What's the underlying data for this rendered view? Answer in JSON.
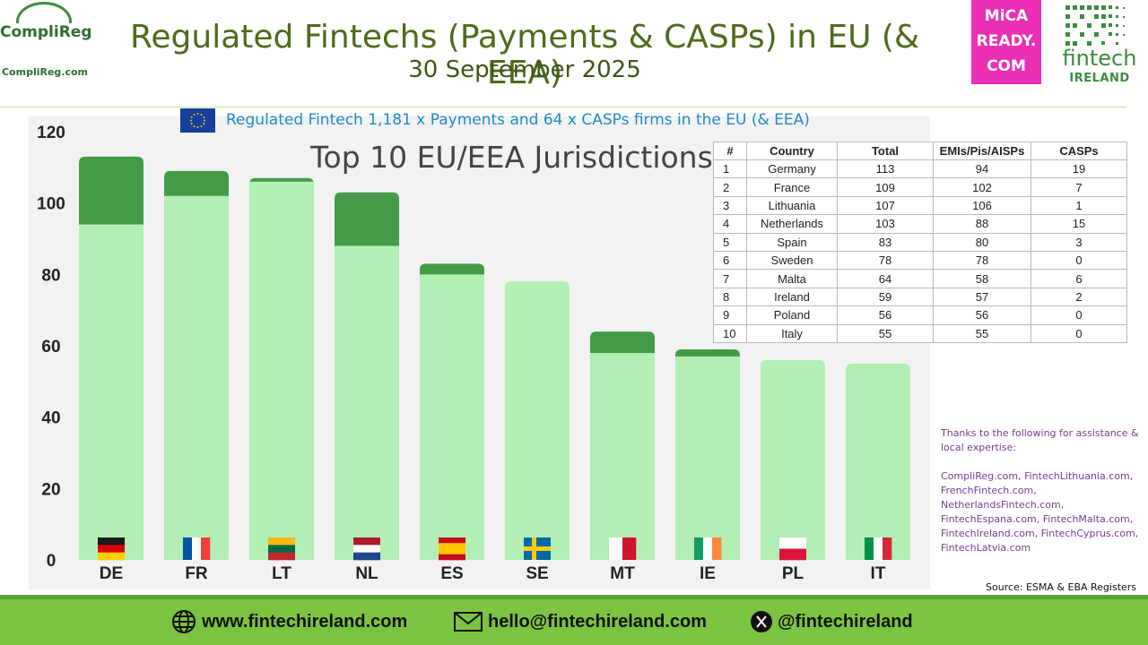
{
  "header": {
    "logo_name": "CompliReg",
    "logo_url": "CompliReg.com",
    "title": "Regulated Fintechs (Payments & CASPs) in EU (& EEA)",
    "subtitle": "30 September 2025",
    "mica_lines": [
      "MiCA",
      "READY.",
      "COM"
    ],
    "fi_word": "fintech",
    "fi_sub": "IRELAND"
  },
  "colors": {
    "light_bar": "#b3eeb4",
    "dark_bar": "#449a47",
    "title_green": "#4e6b1a",
    "note_blue": "#1d8bc6",
    "footer_green": "#7cc342",
    "mica_pink": "#ea2fb4"
  },
  "chart_note": "Regulated Fintech 1,181 x Payments and 64 x CASPs firms in the EU (& EEA)",
  "chart_data": {
    "type": "bar",
    "stacked": true,
    "title": "Top 10 EU/EEA Jurisdictions",
    "categories": [
      "DE",
      "FR",
      "LT",
      "NL",
      "ES",
      "SE",
      "MT",
      "IE",
      "PL",
      "IT"
    ],
    "series": [
      {
        "values": [
          94,
          102,
          106,
          88,
          80,
          78,
          58,
          57,
          56,
          55
        ],
        "color": "#b3eeb4"
      },
      {
        "values": [
          19,
          7,
          1,
          15,
          3,
          0,
          6,
          2,
          0,
          0
        ],
        "color": "#449a47"
      }
    ],
    "ylim": [
      0,
      120
    ],
    "yticks": [
      "0",
      "20",
      "40",
      "60",
      "80",
      "100",
      "120"
    ],
    "grid": false,
    "legend": "none"
  },
  "table": {
    "headers": [
      "#",
      "Country",
      "Total",
      "EMIs/Pis/AISPs",
      "CASPs"
    ],
    "rows": [
      [
        "1",
        "Germany",
        "113",
        "94",
        "19"
      ],
      [
        "2",
        "France",
        "109",
        "102",
        "7"
      ],
      [
        "3",
        "Lithuania",
        "107",
        "106",
        "1"
      ],
      [
        "4",
        "Netherlands",
        "103",
        "88",
        "15"
      ],
      [
        "5",
        "Spain",
        "83",
        "80",
        "3"
      ],
      [
        "6",
        "Sweden",
        "78",
        "78",
        "0"
      ],
      [
        "7",
        "Malta",
        "64",
        "58",
        "6"
      ],
      [
        "8",
        "Ireland",
        "59",
        "57",
        "2"
      ],
      [
        "9",
        "Poland",
        "56",
        "56",
        "0"
      ],
      [
        "10",
        "Italy",
        "55",
        "55",
        "0"
      ]
    ]
  },
  "thanks": {
    "intro": "Thanks to the following for assistance & local expertise:",
    "lines": [
      "CompliReg.com, FintechLithuania.com,",
      "FrenchFintech.com,",
      "NetherlandsFintech.com,",
      "FintechEspana.com, FintechMalta.com,",
      "FintechIreland.com, FintechCyprus.com,",
      "FintechLatvia.com"
    ]
  },
  "source": "Source: ESMA & EBA Registers",
  "footer": {
    "website": "www.fintechireland.com",
    "email": "hello@fintechireland.com",
    "twitter": "@fintechireland"
  }
}
